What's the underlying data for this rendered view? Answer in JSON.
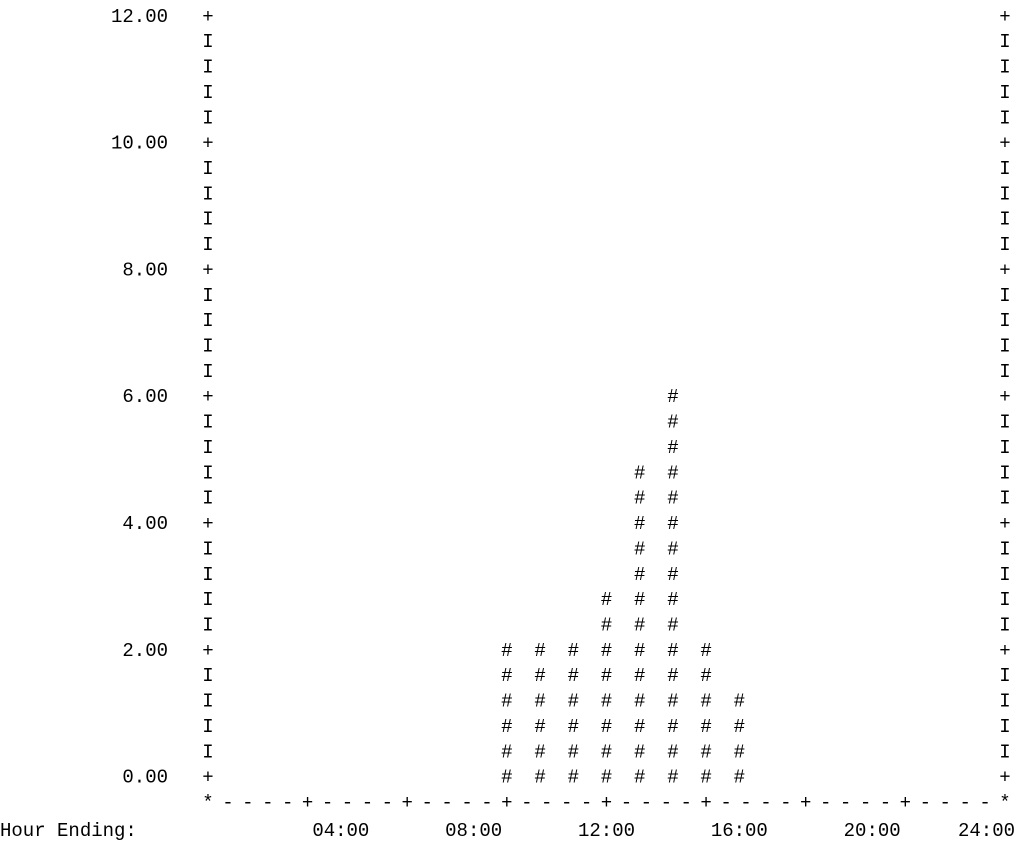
{
  "chart_data": {
    "type": "bar",
    "style": "ascii-histogram",
    "bar_glyph": "#",
    "x_axis_label": "Hour Ending:",
    "x_tick_labels": [
      "04:00",
      "08:00",
      "12:00",
      "16:00",
      "20:00",
      "24:00"
    ],
    "y_tick_labels": [
      "12.00",
      "10.00",
      "8.00",
      "6.00",
      "4.00",
      "2.00",
      "0.00"
    ],
    "ylim": [
      0,
      12
    ],
    "x_range_hours": [
      0,
      24
    ],
    "row_step": 0.4,
    "border_glyphs": {
      "corner": "*",
      "dash": "-",
      "tick": "+",
      "side": "I"
    },
    "x": [
      9,
      10,
      11,
      12,
      13,
      14,
      15,
      16
    ],
    "values": [
      2.4,
      2.4,
      2.4,
      3.2,
      5.2,
      6.4,
      2.4,
      1.6
    ]
  }
}
